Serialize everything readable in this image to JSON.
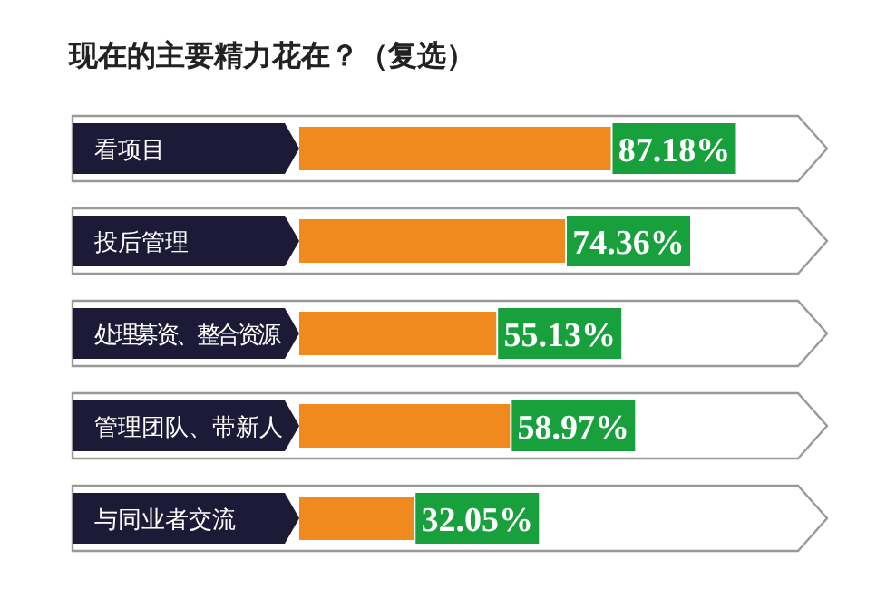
{
  "chart_data": {
    "type": "bar",
    "orientation": "horizontal",
    "title": "现在的主要精力花在？（复选）",
    "categories": [
      "看项目",
      "投后管理",
      "处理募资、整合资源",
      "管理团队、带新人",
      "与同业者交流"
    ],
    "values": [
      87.18,
      74.36,
      55.13,
      58.97,
      32.05
    ],
    "color": "#f08a1e",
    "value_labels": [
      "87.18%",
      "74.36%",
      "55.13%",
      "58.97%",
      "32.05%"
    ]
  }
}
